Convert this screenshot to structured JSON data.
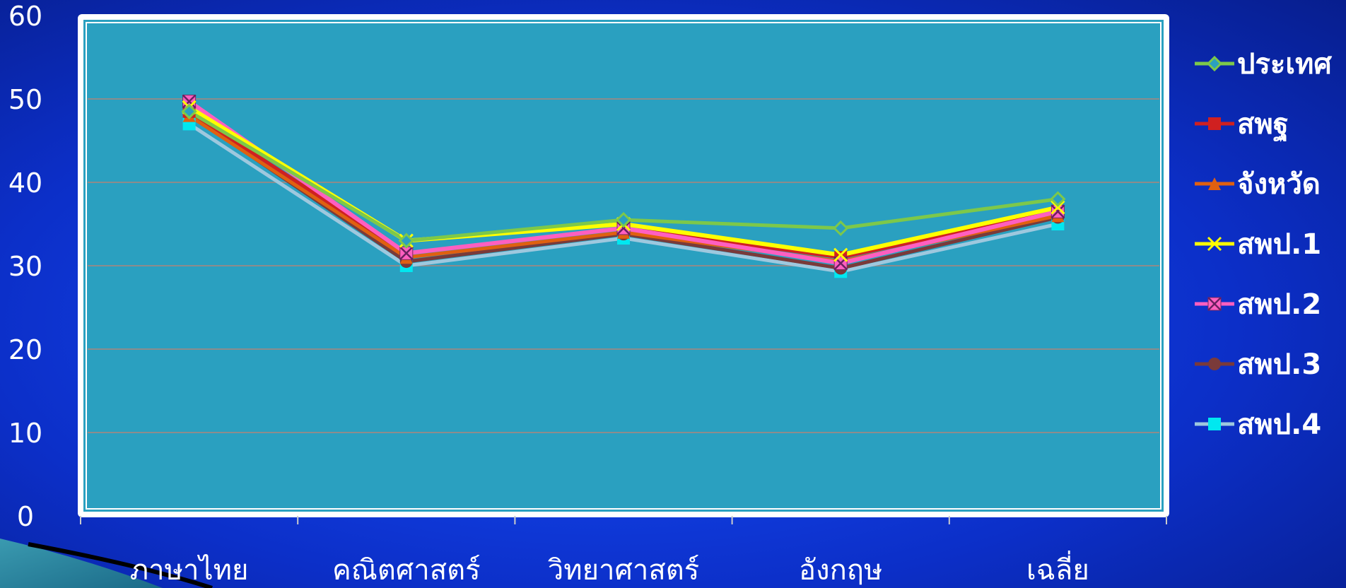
{
  "chart_data": {
    "type": "line",
    "title": "",
    "xlabel": "",
    "ylabel": "",
    "categories": [
      "ภาษาไทย",
      "คณิตศาสตร์",
      "วิทยาศาสตร์",
      "อังกฤษ",
      "เฉลี่ย"
    ],
    "ylim": [
      0,
      60
    ],
    "yticks": [
      "0",
      "10",
      "20",
      "30",
      "40",
      "50",
      "60"
    ],
    "grid": true,
    "legend_position": "right",
    "plot_background": "#2aa0c0",
    "series": [
      {
        "name": "ประเทศ",
        "values": [
          48.5,
          33.0,
          35.5,
          34.5,
          38.0
        ],
        "color": "#7dc84a",
        "marker": "diamond"
      },
      {
        "name": "สพฐ",
        "values": [
          48.5,
          31.5,
          34.5,
          31.0,
          36.5
        ],
        "color": "#d02020",
        "marker": "square"
      },
      {
        "name": "จังหวัด",
        "values": [
          48.0,
          31.0,
          34.0,
          30.5,
          36.0
        ],
        "color": "#e06010",
        "marker": "triangle"
      },
      {
        "name": "สพป.1",
        "values": [
          49.0,
          33.0,
          35.0,
          31.3,
          37.0
        ],
        "color": "#ffff00",
        "marker": "x"
      },
      {
        "name": "สพป.2",
        "values": [
          49.7,
          31.5,
          34.5,
          30.3,
          36.5
        ],
        "color": "#ff5fc0",
        "marker": "xsquare"
      },
      {
        "name": "สพป.3",
        "values": [
          48.2,
          30.5,
          33.8,
          29.7,
          35.8
        ],
        "color": "#7a3a3a",
        "marker": "circle"
      },
      {
        "name": "สพป.4",
        "values": [
          47.0,
          30.0,
          33.3,
          29.3,
          35.0
        ],
        "color": "#9ec8de",
        "marker": "cyansquare"
      }
    ]
  }
}
